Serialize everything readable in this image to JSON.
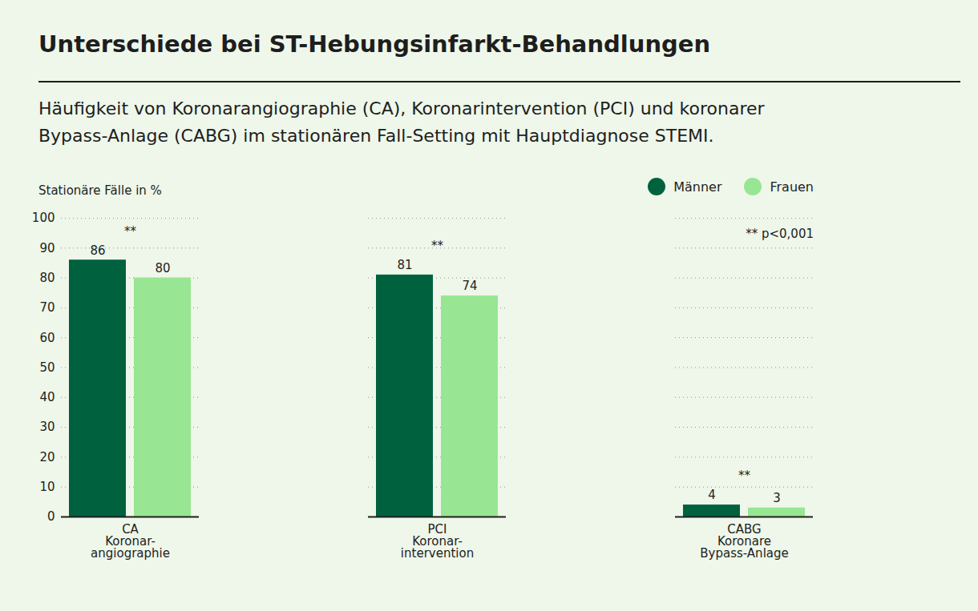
{
  "chart_data": {
    "type": "bar",
    "title": "Unterschiede bei ST-Hebungsinfarkt-Behandlungen",
    "subtitle": "Häufigkeit von Koronarangiographie (CA), Koronarintervention (PCI) und koronarer\nBypass-Anlage (CABG) im stationären Fall-Setting mit Hauptdiagnose STEMI.",
    "y_label": "Stationäre Fälle in %",
    "categories": [
      "CA\nKoronar-\nangiographie",
      "PCI\nKoronar-\nintervention",
      "CABG\nKoronare\nBypass-Anlage"
    ],
    "series": [
      {
        "name": "Männer",
        "color": "#00613f",
        "values": [
          86,
          81,
          4
        ]
      },
      {
        "name": "Frauen",
        "color": "#98e693",
        "values": [
          80,
          74,
          3
        ]
      }
    ],
    "significance": [
      "**",
      "**",
      "**"
    ],
    "note": "** p<0,001",
    "ylim": [
      0,
      100
    ],
    "yticks": [
      0,
      10,
      20,
      30,
      40,
      50,
      60,
      70,
      80,
      90,
      100
    ],
    "grid": true,
    "legend": "top-right",
    "data_labels": true
  }
}
